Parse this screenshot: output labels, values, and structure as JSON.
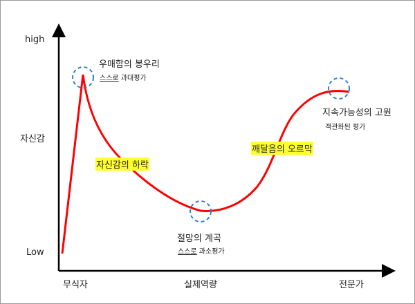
{
  "axes": {
    "y_high": "high",
    "y_label": "자신감",
    "y_low": "Low",
    "x_start": "무식자",
    "x_label": "실제역량",
    "x_end": "전문가"
  },
  "annotations": {
    "peak": {
      "title": "우매함의 봉우리",
      "underlined": "스스로",
      "note": " 과대평가"
    },
    "decline": "자신감의 하락",
    "valley": {
      "title": "절망의 계곡",
      "underlined": "스스로",
      "note": " 과소평가"
    },
    "slope": "깨달음의 오르막",
    "plateau": {
      "title": "지속가능성의 고원",
      "note": "객관화된 평가"
    }
  },
  "colors": {
    "curve": "#ff0000",
    "circle": "#2a7fd0",
    "highlight": "#ffff2a",
    "axis": "#000000"
  }
}
